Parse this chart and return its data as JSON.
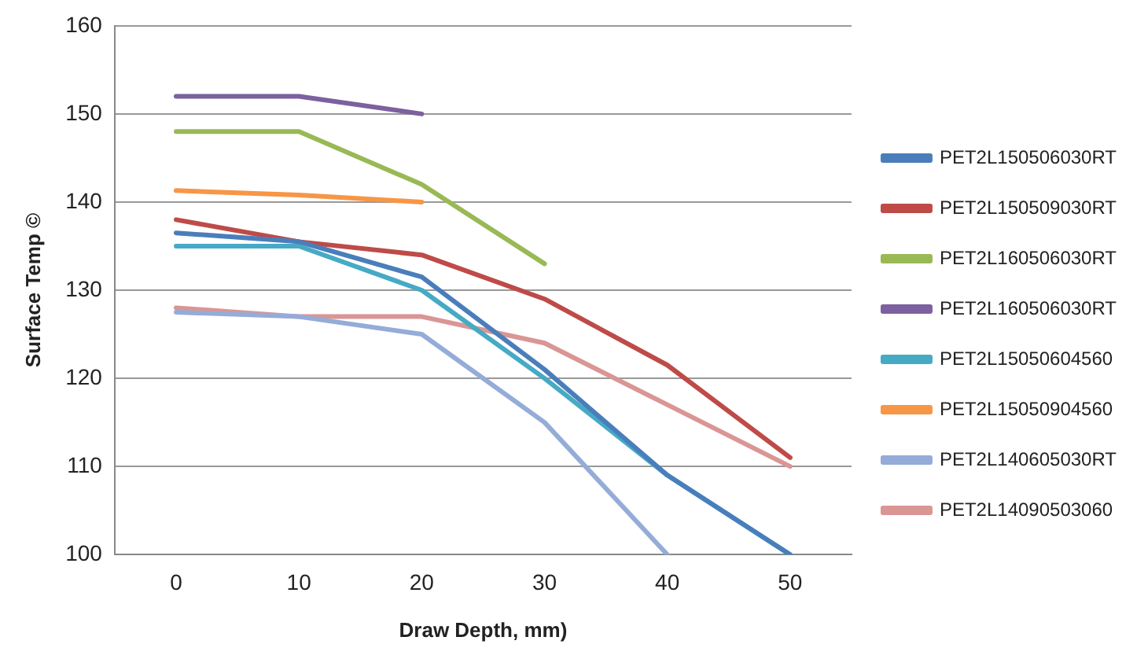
{
  "chart_data": {
    "type": "line",
    "xlabel": "Draw Depth, mm)",
    "ylabel": "Surface Temp ©",
    "categories": [
      "0",
      "10",
      "20",
      "30",
      "40",
      "50"
    ],
    "ylim": [
      100,
      160
    ],
    "yticks": [
      100,
      110,
      120,
      130,
      140,
      150,
      160
    ],
    "grid": "y",
    "legend": "right",
    "marker": "none",
    "line_style": "solid",
    "series": [
      {
        "name": "PET2L150506030RT",
        "color": "#4a7ebb",
        "values": [
          136.5,
          135.5,
          131.5,
          121,
          109,
          100
        ]
      },
      {
        "name": "PET2L150509030RT",
        "color": "#be4b48",
        "values": [
          138,
          135.5,
          134,
          129,
          121.5,
          111
        ]
      },
      {
        "name": "PET2L160506030RT",
        "color": "#98b954",
        "values": [
          148,
          148,
          142,
          133,
          null,
          null
        ]
      },
      {
        "name": "PET2L160506030RT",
        "color": "#7d60a0",
        "values": [
          152,
          152,
          150,
          null,
          null,
          null
        ]
      },
      {
        "name": "PET2L15050604560",
        "color": "#46aac5",
        "values": [
          135,
          135,
          130,
          120,
          109,
          100
        ]
      },
      {
        "name": "PET2L15050904560",
        "color": "#f79646",
        "values": [
          141.3,
          140.8,
          140,
          null,
          null,
          null
        ]
      },
      {
        "name": "PET2L140605030RT",
        "color": "#95acd8",
        "values": [
          127.5,
          127,
          125,
          115,
          100,
          null
        ]
      },
      {
        "name": "PET2L14090503060",
        "color": "#d99694",
        "values": [
          128,
          127,
          127,
          124,
          117,
          110
        ]
      }
    ]
  }
}
